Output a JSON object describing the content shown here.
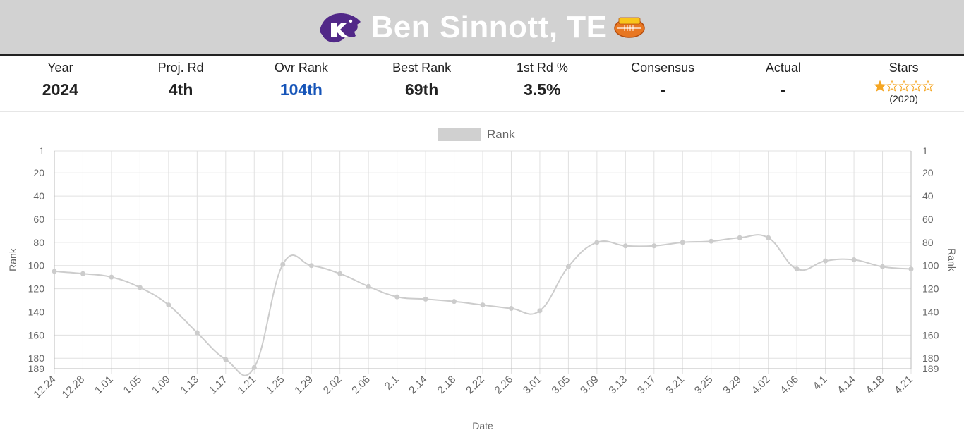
{
  "header": {
    "title": "Ben Sinnott, TE",
    "team_logo_icon": "kansas-state-wildcat-logo-icon",
    "bowl_logo_icon": "senior-bowl-logo-icon",
    "background_color": "#d2d2d2"
  },
  "stats": [
    {
      "label": "Year",
      "value": "2024"
    },
    {
      "label": "Proj. Rd",
      "value": "4th"
    },
    {
      "label": "Ovr Rank",
      "value": "104th",
      "color": "#1554b8"
    },
    {
      "label": "Best Rank",
      "value": "69th"
    },
    {
      "label": "1st Rd %",
      "value": "3.5%"
    },
    {
      "label": "Consensus",
      "value": "-"
    },
    {
      "label": "Actual",
      "value": "-"
    },
    {
      "label": "Stars",
      "stars_filled": 1,
      "stars_total": 5,
      "stars_year": "(2020)",
      "star_color": "#f5a623"
    }
  ],
  "chart_data": {
    "type": "line",
    "legend": "top",
    "series": [
      {
        "name": "Rank",
        "color": "#cccccc",
        "values": [
          105,
          107,
          110,
          119,
          134,
          158,
          181,
          188,
          99,
          100,
          107,
          118,
          127,
          129,
          131,
          134,
          137,
          139,
          101,
          80,
          83,
          83,
          80,
          79,
          76,
          76,
          103,
          96,
          95,
          101,
          103
        ]
      }
    ],
    "categories": [
      "12.24",
      "12.28",
      "1.01",
      "1.05",
      "1.09",
      "1.13",
      "1.17",
      "1.21",
      "1.25",
      "1.29",
      "2.02",
      "2.06",
      "2.1",
      "2.14",
      "2.18",
      "2.22",
      "2.26",
      "3.01",
      "3.05",
      "3.09",
      "3.13",
      "3.17",
      "3.21",
      "3.25",
      "3.29",
      "4.02",
      "4.06",
      "4.1",
      "4.14",
      "4.18",
      "4.21"
    ],
    "xlabel": "Date",
    "ylabel": "Rank",
    "ylabel_right": "Rank",
    "ylim": [
      1,
      189
    ],
    "y_reversed": true,
    "yticks": [
      1,
      20,
      40,
      60,
      80,
      100,
      120,
      140,
      160,
      180,
      189
    ],
    "grid": true
  }
}
